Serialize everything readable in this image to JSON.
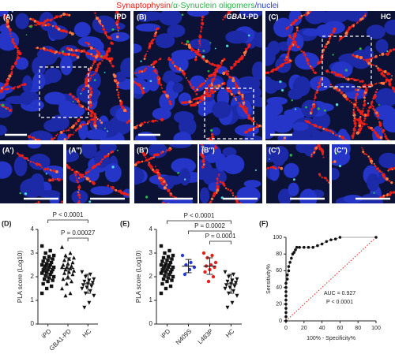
{
  "title": [
    {
      "text": "Synaptophysin",
      "color": "#e8201c"
    },
    {
      "text": "/α-Synuclein oligomers",
      "color": "#2bb34a"
    },
    {
      "text": "/nuclei",
      "color": "#2a3bd8"
    }
  ],
  "images": [
    {
      "panel": "(A)",
      "condition": [
        "iPD"
      ]
    },
    {
      "panel": "(B)",
      "condition": [
        "GBA1",
        "-PD"
      ]
    },
    {
      "panel": "(C)",
      "condition": [
        "HC"
      ]
    }
  ],
  "insets": [
    "(A′)",
    "(A″)",
    "(B′)",
    "(B″)",
    "(C′)",
    "(C″)"
  ],
  "chart_data": [
    {
      "type": "dot-plot",
      "panel": "(D)",
      "y_label": "PLA score (Log10)",
      "ylim": [
        0,
        4
      ],
      "yticks": [
        0,
        1,
        2,
        3,
        4
      ],
      "groups": [
        {
          "name": "iPD",
          "marker": "square",
          "color": "#111111",
          "values": [
            3.3,
            3.1,
            3.0,
            2.9,
            2.85,
            2.8,
            2.75,
            2.7,
            2.65,
            2.6,
            2.55,
            2.5,
            2.5,
            2.45,
            2.4,
            2.4,
            2.35,
            2.3,
            2.3,
            2.25,
            2.2,
            2.2,
            2.15,
            2.1,
            2.05,
            2.0,
            1.95,
            1.9,
            1.85,
            1.8,
            1.7,
            1.6,
            1.5,
            1.3
          ],
          "mean": 2.35,
          "sd": 0.4
        },
        {
          "name": "GBA1-PD",
          "marker": "triangle",
          "color": "#111111",
          "values": [
            3.25,
            3.0,
            2.9,
            2.8,
            2.75,
            2.7,
            2.6,
            2.55,
            2.5,
            2.45,
            2.4,
            2.4,
            2.35,
            2.3,
            2.25,
            2.2,
            2.15,
            2.1,
            2.0,
            1.9,
            1.8,
            1.7,
            1.5,
            1.3,
            1.2
          ],
          "mean": 2.35,
          "sd": 0.45
        },
        {
          "name": "HC",
          "marker": "triangle-down",
          "color": "#111111",
          "values": [
            2.2,
            2.1,
            2.0,
            1.9,
            1.85,
            1.8,
            1.75,
            1.7,
            1.65,
            1.6,
            1.55,
            1.5,
            1.4,
            1.3,
            1.2,
            0.9,
            0.7
          ],
          "mean": 1.7,
          "sd": 0.4
        }
      ],
      "annotations": [
        "P < 0.0001",
        "P = 0.00027"
      ]
    },
    {
      "type": "dot-plot",
      "panel": "(E)",
      "y_label": "PLA score (Log10)",
      "ylim": [
        0,
        4
      ],
      "yticks": [
        0,
        1,
        2,
        3,
        4
      ],
      "groups": [
        {
          "name": "iPD",
          "marker": "square",
          "color": "#111111",
          "values": [
            3.3,
            3.1,
            3.0,
            2.9,
            2.85,
            2.8,
            2.75,
            2.7,
            2.65,
            2.6,
            2.55,
            2.5,
            2.5,
            2.45,
            2.4,
            2.4,
            2.35,
            2.3,
            2.3,
            2.25,
            2.2,
            2.2,
            2.15,
            2.1,
            2.05,
            2.0,
            1.95,
            1.9,
            1.85,
            1.8,
            1.7,
            1.6,
            1.5,
            1.3
          ],
          "mean": 2.35,
          "sd": 0.4
        },
        {
          "name": "N409S",
          "marker": "circle",
          "color": "#2a3bd8",
          "values": [
            2.9,
            2.6,
            2.5,
            2.4,
            2.3,
            2.1
          ],
          "mean": 2.45,
          "sd": 0.28
        },
        {
          "name": "L483P",
          "marker": "circle",
          "color": "#e8201c",
          "values": [
            3.0,
            2.9,
            2.8,
            2.6,
            2.5,
            2.45,
            2.4,
            2.3,
            2.2,
            2.0,
            1.8
          ],
          "mean": 2.45,
          "sd": 0.35
        },
        {
          "name": "HC",
          "marker": "triangle-down",
          "color": "#111111",
          "values": [
            2.2,
            2.1,
            2.0,
            1.9,
            1.85,
            1.8,
            1.75,
            1.7,
            1.65,
            1.6,
            1.55,
            1.5,
            1.4,
            1.3,
            1.2,
            0.9,
            0.7
          ],
          "mean": 1.7,
          "sd": 0.4
        }
      ],
      "annotations": [
        "P < 0.0001",
        "P = 0.0002",
        "P = 0.0001"
      ]
    },
    {
      "type": "roc",
      "panel": "(F)",
      "x_label": "100% - Specificity%",
      "y_label": "Sensitivity%",
      "xlim": [
        0,
        100
      ],
      "ylim": [
        0,
        100
      ],
      "xticks": [
        0,
        20,
        40,
        60,
        80,
        100
      ],
      "yticks": [
        0,
        20,
        40,
        60,
        80,
        100
      ],
      "x": [
        0,
        0,
        0,
        0,
        0,
        0,
        0,
        0,
        0,
        0,
        1.5,
        1.5,
        3,
        3,
        4.5,
        6,
        7.5,
        9,
        10.5,
        12,
        15,
        20,
        25,
        30,
        35,
        40,
        45,
        50,
        55,
        60,
        100
      ],
      "y": [
        0,
        5,
        10,
        15,
        20,
        25,
        30,
        35,
        40,
        45,
        50,
        55,
        60,
        65,
        70,
        75,
        80,
        82,
        85,
        88,
        88,
        88,
        88,
        88,
        90,
        92,
        95,
        97,
        98,
        100,
        100
      ],
      "color": "#111111",
      "annotations": [
        "AUC = 0.927",
        "P < 0.0001"
      ]
    }
  ]
}
